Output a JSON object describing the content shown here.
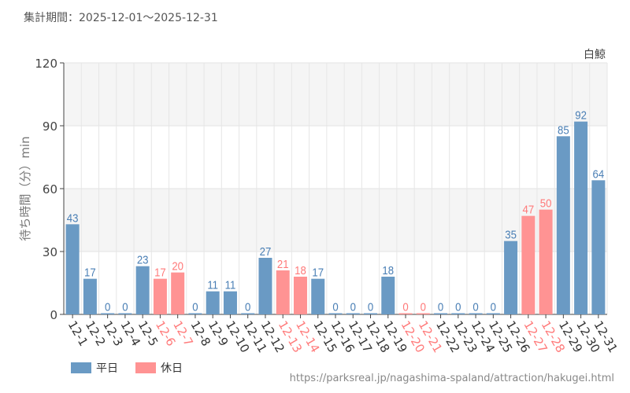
{
  "header": {
    "title": "集計期間：2025-12-01～2025-12-31"
  },
  "footer": {
    "url": "https://parksreal.jp/nagashima-spaland/attraction/hakugei.html"
  },
  "chart_data": {
    "type": "bar",
    "title": "白鯨",
    "ylabel": "待ち時間（分）min",
    "xlabel": "",
    "ylim": [
      0,
      120
    ],
    "yticks": [
      0,
      30,
      60,
      90,
      120
    ],
    "grid": true,
    "legend_position": "bottom-left",
    "colors": {
      "weekday": "#6a9ac4",
      "holiday": "#ff9393",
      "weekday_text": "#4a7fb5",
      "holiday_text": "#ff7a7a"
    },
    "legend": [
      {
        "key": "weekday",
        "label": "平日"
      },
      {
        "key": "holiday",
        "label": "休日"
      }
    ],
    "categories": [
      "12-1",
      "12-2",
      "12-3",
      "12-4",
      "12-5",
      "12-6",
      "12-7",
      "12-8",
      "12-9",
      "12-10",
      "12-11",
      "12-12",
      "12-13",
      "12-14",
      "12-15",
      "12-16",
      "12-17",
      "12-18",
      "12-19",
      "12-20",
      "12-21",
      "12-22",
      "12-23",
      "12-24",
      "12-25",
      "12-26",
      "12-27",
      "12-28",
      "12-29",
      "12-30",
      "12-31"
    ],
    "values": [
      43,
      17,
      0,
      0,
      23,
      17,
      20,
      0,
      11,
      11,
      0,
      27,
      21,
      18,
      17,
      0,
      0,
      0,
      18,
      0,
      0,
      0,
      0,
      0,
      0,
      35,
      47,
      50,
      85,
      92,
      64
    ],
    "holiday": [
      0,
      0,
      0,
      0,
      0,
      1,
      1,
      0,
      0,
      0,
      0,
      0,
      1,
      1,
      0,
      0,
      0,
      0,
      0,
      1,
      1,
      0,
      0,
      0,
      0,
      0,
      1,
      1,
      0,
      0,
      0
    ]
  }
}
